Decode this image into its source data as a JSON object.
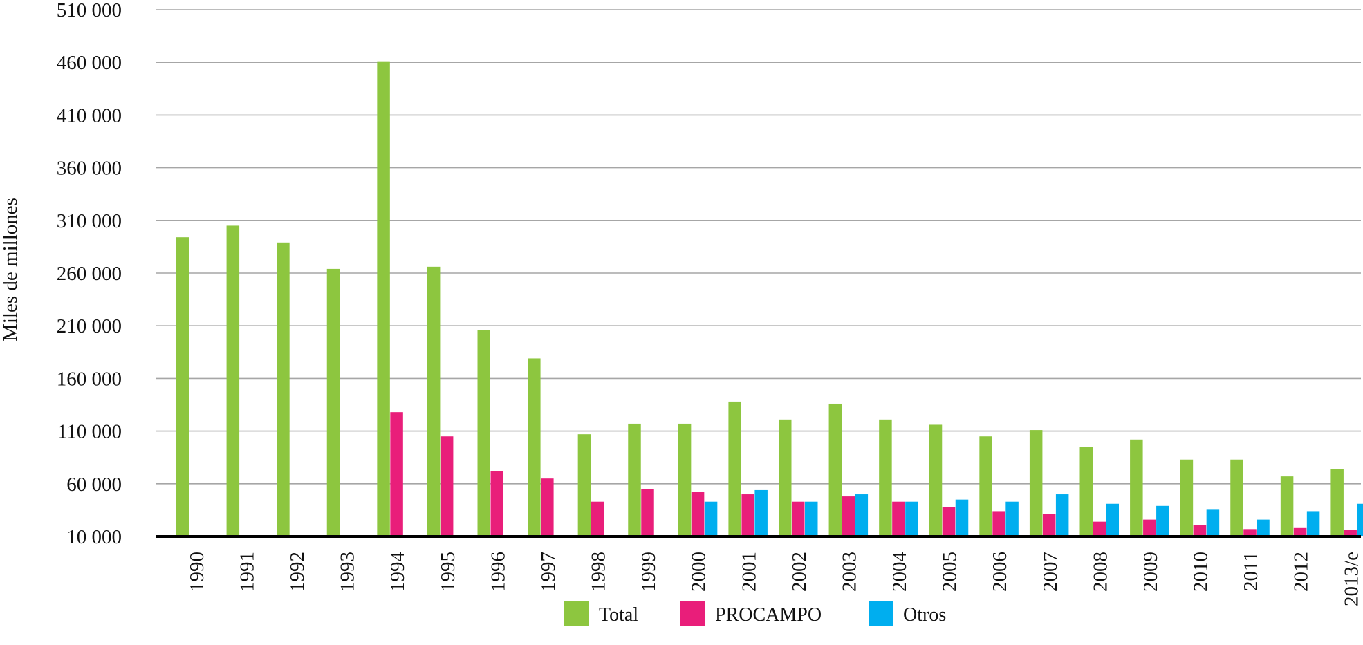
{
  "chart_data": {
    "type": "bar",
    "title": "",
    "xlabel": "",
    "ylabel": "Miles de millones",
    "ylim": [
      10000,
      510000
    ],
    "yticks": [
      10000,
      60000,
      110000,
      160000,
      210000,
      260000,
      310000,
      360000,
      410000,
      460000,
      510000
    ],
    "ytick_labels": [
      "10 000",
      "60 000",
      "110 000",
      "160 000",
      "210 000",
      "260 000",
      "310 000",
      "360 000",
      "410 000",
      "460 000",
      "510 000"
    ],
    "grid": true,
    "legend_position": "bottom",
    "categories": [
      "1990",
      "1991",
      "1992",
      "1993",
      "1994",
      "1995",
      "1996",
      "1997",
      "1998",
      "1999",
      "2000",
      "2001",
      "2002",
      "2003",
      "2004",
      "2005",
      "2006",
      "2007",
      "2008",
      "2009",
      "2010",
      "2011",
      "2012",
      "2013/e"
    ],
    "series": [
      {
        "name": "Total",
        "color": "#8dc63f",
        "values": [
          294000,
          305000,
          289000,
          264000,
          461000,
          266000,
          206000,
          179000,
          107000,
          117000,
          117000,
          138000,
          121000,
          136000,
          121000,
          116000,
          105000,
          111000,
          95000,
          102000,
          83000,
          83000,
          67000,
          74000
        ]
      },
      {
        "name": "PROCAMPO",
        "color": "#e91e7a",
        "values": [
          null,
          null,
          null,
          null,
          128000,
          105000,
          72000,
          65000,
          43000,
          55000,
          52000,
          50000,
          43000,
          48000,
          43000,
          38000,
          34000,
          31000,
          24000,
          26000,
          21000,
          17000,
          18000,
          16000
        ]
      },
      {
        "name": "Otros",
        "color": "#00aeef",
        "values": [
          null,
          null,
          null,
          null,
          null,
          null,
          null,
          null,
          null,
          null,
          43000,
          54000,
          43000,
          50000,
          43000,
          45000,
          43000,
          50000,
          41000,
          39000,
          36000,
          26000,
          34000,
          41000
        ]
      }
    ]
  }
}
